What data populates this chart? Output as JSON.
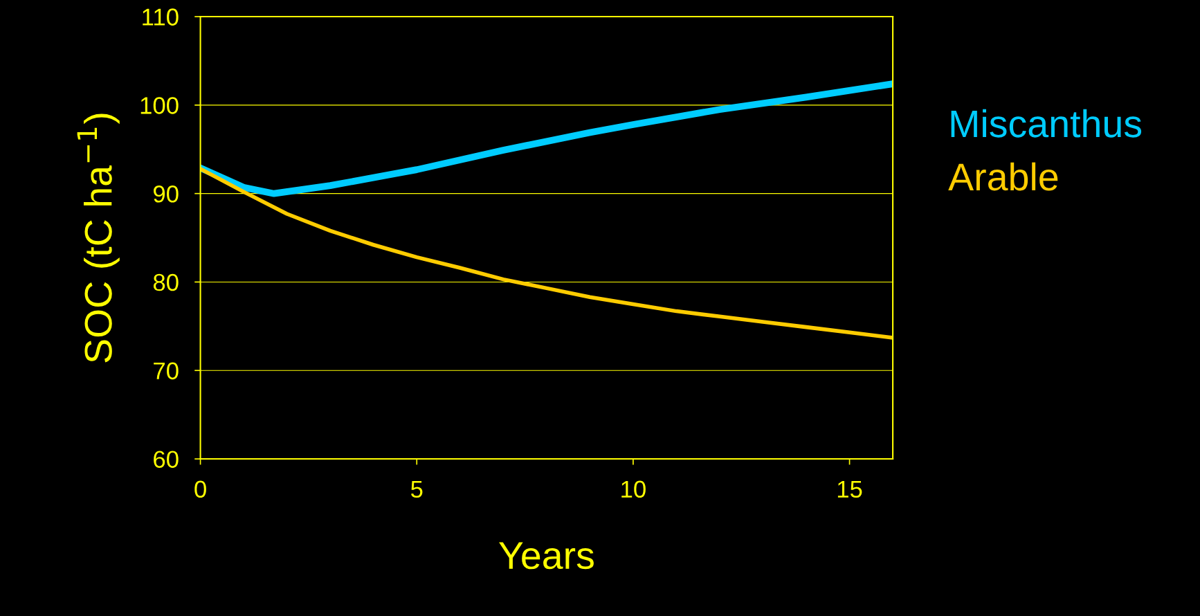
{
  "chart_data": {
    "type": "line",
    "xlabel": "Years",
    "ylabel": "SOC (tC ha$^{−1}$)",
    "x": [
      0,
      1,
      1.7,
      3,
      5,
      7,
      9,
      10,
      12,
      14,
      16
    ],
    "series": [
      {
        "name": "Miscanthus",
        "color": "#00ccff",
        "values": [
          92.9,
          90.7,
          90.0,
          90.9,
          92.7,
          94.9,
          96.9,
          97.8,
          99.5,
          100.9,
          102.4
        ]
      },
      {
        "name": "Arable",
        "color": "#ffcc00",
        "x": [
          0,
          1,
          2,
          3,
          4,
          5,
          6,
          7,
          8,
          9,
          10,
          11,
          12,
          13,
          14,
          15,
          16
        ],
        "values": [
          92.8,
          90.2,
          87.7,
          85.8,
          84.2,
          82.8,
          81.6,
          80.3,
          79.3,
          78.3,
          77.5,
          76.7,
          76.1,
          75.5,
          74.9,
          74.3,
          73.7
        ]
      }
    ],
    "xlim": [
      0,
      16
    ],
    "xticks": [
      0,
      5,
      10,
      15
    ],
    "ylim": [
      60,
      110
    ],
    "yticks": [
      60,
      70,
      80,
      90,
      100,
      110
    ],
    "grid": "y",
    "legend": "right",
    "marker": "none",
    "line_style": "solid"
  }
}
